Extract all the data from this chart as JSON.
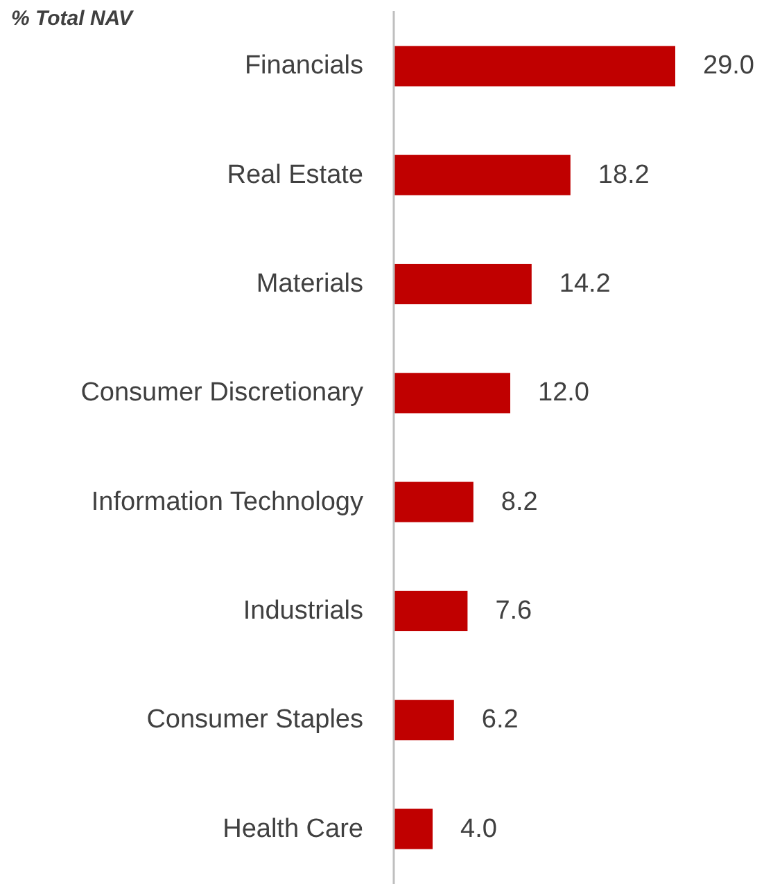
{
  "chart_data": {
    "type": "bar",
    "orientation": "horizontal",
    "title": "% Total NAV",
    "categories": [
      "Financials",
      "Real Estate",
      "Materials",
      "Consumer Discretionary",
      "Information Technology",
      "Industrials",
      "Consumer Staples",
      "Health Care"
    ],
    "values": [
      29.0,
      18.2,
      14.2,
      12.0,
      8.2,
      7.6,
      6.2,
      4.0
    ],
    "value_labels": [
      "29.0",
      "18.2",
      "14.2",
      "12.0",
      "8.2",
      "7.6",
      "6.2",
      "4.0"
    ],
    "color": "#c00000"
  }
}
